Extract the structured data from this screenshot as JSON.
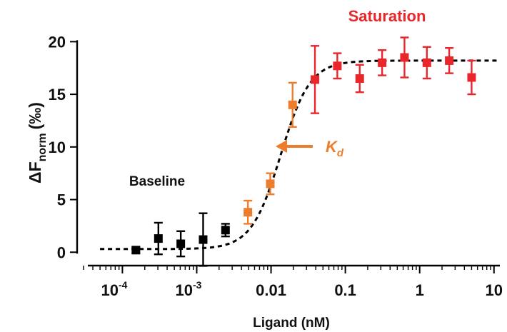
{
  "chart_data": {
    "type": "scatter",
    "title": "",
    "xlabel": "Ligand (nM)",
    "ylabel": "ΔF",
    "ylabel_sub": "norm",
    "ylabel_unit": "(‰)",
    "xscale": "log",
    "xlim": [
      3e-05,
      12
    ],
    "ylim": [
      -1,
      20.5
    ],
    "grid": false,
    "yticks": [
      0,
      5,
      10,
      15,
      20
    ],
    "ytick_labels": [
      "0",
      "5",
      "10",
      "15",
      "20"
    ],
    "xticks": [
      {
        "value": 0.0001,
        "base": "10",
        "exp": "-4"
      },
      {
        "value": 0.001,
        "base": "10",
        "exp": "-3"
      },
      {
        "value": 0.01,
        "base": "0.01",
        "exp": ""
      },
      {
        "value": 0.1,
        "base": "0.1",
        "exp": ""
      },
      {
        "value": 1,
        "base": "1",
        "exp": ""
      },
      {
        "value": 10,
        "base": "10",
        "exp": ""
      }
    ],
    "colors": {
      "baseline": "#000000",
      "transition": "#ee7d2b",
      "saturation": "#e8262b",
      "fit": "#000000"
    },
    "series": [
      {
        "group": "baseline",
        "points": [
          {
            "x": 0.000152,
            "y": 0.2,
            "err": 0.3
          },
          {
            "x": 0.000305,
            "y": 1.3,
            "err": 1.5
          },
          {
            "x": 0.00061,
            "y": 0.8,
            "err": 1.2
          },
          {
            "x": 0.00122,
            "y": 1.2,
            "err": 2.5
          },
          {
            "x": 0.00244,
            "y": 2.1,
            "err": 0.6
          }
        ]
      },
      {
        "group": "transition",
        "points": [
          {
            "x": 0.00488,
            "y": 3.8,
            "err": 1.1
          },
          {
            "x": 0.00977,
            "y": 6.5,
            "err": 1.0
          },
          {
            "x": 0.0195,
            "y": 14.0,
            "err": 2.1
          }
        ]
      },
      {
        "group": "saturation",
        "points": [
          {
            "x": 0.039,
            "y": 16.4,
            "err": 3.2
          },
          {
            "x": 0.078,
            "y": 17.7,
            "err": 1.2
          },
          {
            "x": 0.156,
            "y": 16.5,
            "err": 1.3
          },
          {
            "x": 0.3125,
            "y": 18.0,
            "err": 1.2
          },
          {
            "x": 0.625,
            "y": 18.5,
            "err": 1.9
          },
          {
            "x": 1.25,
            "y": 18.0,
            "err": 1.5
          },
          {
            "x": 2.5,
            "y": 18.2,
            "err": 1.2
          },
          {
            "x": 5.0,
            "y": 16.6,
            "err": 1.6
          }
        ]
      }
    ],
    "fit": {
      "bottom": 0.3,
      "top": 18.2,
      "ec50": 0.0135,
      "hill": 2.2
    },
    "annotations": {
      "baseline": "Baseline",
      "saturation": "Saturation",
      "kd_main": "K",
      "kd_sub": "d"
    }
  }
}
